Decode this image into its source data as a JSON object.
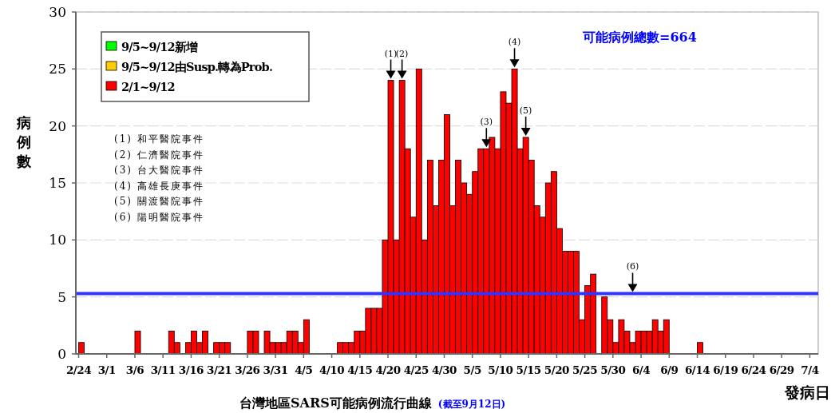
{
  "chart_data": {
    "type": "bar",
    "title": "台灣地區SARS可能病例流行曲線",
    "subtitle": "(截至9月12日)",
    "xlabel": "發病日",
    "ylabel": "病例數",
    "x": [
      "--02-24",
      "--03-06",
      "--03-12",
      "--03-13",
      "--03-15",
      "--03-16",
      "--03-17",
      "--03-18",
      "--03-20",
      "--03-21",
      "--03-22",
      "--03-26",
      "--03-27",
      "--03-29",
      "--03-30",
      "--03-31",
      "--04-01",
      "--04-02",
      "--04-03",
      "--04-04",
      "--04-05",
      "--04-11",
      "--04-12",
      "--04-13",
      "--04-14",
      "--04-15",
      "--04-16",
      "--04-17",
      "--04-18",
      "--04-19",
      "--04-20",
      "--04-21",
      "--04-22",
      "--04-23",
      "--04-24",
      "--04-25",
      "--04-26",
      "--04-27",
      "--04-28",
      "--04-29",
      "--04-30",
      "--05-01",
      "--05-02",
      "--05-03",
      "--05-04",
      "--05-05",
      "--05-06",
      "--05-07",
      "--05-08",
      "--05-09",
      "--05-10",
      "--05-11",
      "--05-12",
      "--05-13",
      "--05-14",
      "--05-15",
      "--05-16",
      "--05-17",
      "--05-18",
      "--05-19",
      "--05-20",
      "--05-21",
      "--05-22",
      "--05-23",
      "--05-24",
      "--05-25",
      "--05-26",
      "--05-28",
      "--05-29",
      "--05-30",
      "--05-31",
      "--06-01",
      "--06-02",
      "--06-03",
      "--06-04",
      "--06-05",
      "--06-06",
      "--06-07",
      "--06-08",
      "--06-14"
    ],
    "series": [
      {
        "name": "2/1~9/12",
        "color": "#ff0000",
        "values": [
          1,
          2,
          2,
          1,
          1,
          2,
          1,
          2,
          1,
          1,
          1,
          2,
          2,
          2,
          1,
          1,
          1,
          2,
          2,
          1,
          3,
          1,
          1,
          1,
          2,
          2,
          4,
          4,
          4,
          10,
          24,
          10,
          24,
          18,
          12,
          25,
          10,
          17,
          13,
          17,
          21,
          13,
          17,
          15,
          14,
          16,
          18,
          18,
          19,
          18,
          23,
          22,
          25,
          18,
          19,
          17,
          13,
          12,
          15,
          16,
          11,
          9,
          9,
          9,
          3,
          6,
          7,
          5,
          3,
          1,
          3,
          2,
          1,
          2,
          2,
          2,
          3,
          2,
          3,
          1
        ]
      },
      {
        "name": "9/5~9/12由Susp.轉為Prob.",
        "color": "#ffcc00",
        "values": [
          null,
          null,
          null,
          null,
          null,
          null,
          null,
          null,
          null,
          null,
          null,
          null,
          null,
          null,
          null,
          null,
          null,
          null,
          null,
          null,
          null,
          null,
          null,
          null,
          null,
          null,
          null,
          null,
          null,
          null,
          null,
          null,
          null,
          null,
          null,
          null,
          null,
          null,
          null,
          null,
          null,
          null,
          null,
          null,
          null,
          null,
          null,
          null,
          null,
          null,
          null,
          null,
          null,
          null,
          null,
          null,
          null,
          null,
          null,
          null,
          null,
          null,
          null,
          null,
          null,
          null,
          null,
          null,
          null,
          null,
          null,
          null,
          null,
          null,
          null,
          null,
          null,
          null,
          null,
          null
        ]
      },
      {
        "name": "9/5~9/12新增",
        "color": "#00ff00",
        "values": [
          null,
          null,
          null,
          null,
          null,
          null,
          null,
          null,
          null,
          null,
          null,
          null,
          null,
          null,
          null,
          null,
          null,
          null,
          null,
          null,
          null,
          null,
          null,
          null,
          null,
          null,
          null,
          null,
          null,
          null,
          null,
          null,
          null,
          null,
          null,
          null,
          null,
          null,
          null,
          null,
          null,
          null,
          null,
          null,
          null,
          null,
          null,
          null,
          null,
          null,
          null,
          null,
          null,
          null,
          null,
          null,
          null,
          null,
          null,
          null,
          null,
          null,
          null,
          null,
          null,
          null,
          null,
          null,
          null,
          null,
          null,
          null,
          null,
          null,
          null,
          null,
          null,
          null,
          null,
          null
        ]
      }
    ],
    "xlim": [
      "--02-23",
      "--07-05"
    ],
    "xticks": [
      {
        "value": "--02-24",
        "label": "2/24"
      },
      {
        "value": "--03-01",
        "label": "3/1"
      },
      {
        "value": "--03-06",
        "label": "3/6"
      },
      {
        "value": "--03-11",
        "label": "3/11"
      },
      {
        "value": "--03-16",
        "label": "3/16"
      },
      {
        "value": "--03-21",
        "label": "3/21"
      },
      {
        "value": "--03-26",
        "label": "3/26"
      },
      {
        "value": "--03-31",
        "label": "3/31"
      },
      {
        "value": "--04-05",
        "label": "4/5"
      },
      {
        "value": "--04-10",
        "label": "4/10"
      },
      {
        "value": "--04-15",
        "label": "4/15"
      },
      {
        "value": "--04-20",
        "label": "4/20"
      },
      {
        "value": "--04-25",
        "label": "4/25"
      },
      {
        "value": "--04-30",
        "label": "4/30"
      },
      {
        "value": "--05-05",
        "label": "5/5"
      },
      {
        "value": "--05-10",
        "label": "5/10"
      },
      {
        "value": "--05-15",
        "label": "5/15"
      },
      {
        "value": "--05-20",
        "label": "5/20"
      },
      {
        "value": "--05-25",
        "label": "5/25"
      },
      {
        "value": "--05-30",
        "label": "5/30"
      },
      {
        "value": "--06-04",
        "label": "6/4"
      },
      {
        "value": "--06-09",
        "label": "6/9"
      },
      {
        "value": "--06-14",
        "label": "6/14"
      },
      {
        "value": "--06-19",
        "label": "6/19"
      },
      {
        "value": "--06-24",
        "label": "6/24"
      },
      {
        "value": "--06-29",
        "label": "6/29"
      },
      {
        "value": "--07-04",
        "label": "7/4"
      }
    ],
    "ylim": [
      0,
      30
    ],
    "yticks": [
      0,
      5,
      10,
      15,
      20,
      25,
      30
    ],
    "grid": "y",
    "legend": "top left",
    "ref_lines": [
      {
        "axis": "y",
        "value": 5.3,
        "color": "#3333ff"
      }
    ],
    "annotations": [
      "可能病例總數=664",
      "(1) 和平醫院事件",
      "(2) 仁濟醫院事件",
      "(3) 台大醫院事件",
      "(4) 高雄長庚事件",
      "(5) 關渡醫院事件",
      "(6) 陽明醫院事件",
      {
        "text": "(1)",
        "x": "--04-20",
        "y": 24
      },
      {
        "text": "(2)",
        "x": "--04-22",
        "y": 24
      },
      {
        "text": "(3)",
        "x": "--05-07",
        "y": 18
      },
      {
        "text": "(4)",
        "x": "--05-12",
        "y": 25
      },
      {
        "text": "(5)",
        "x": "--05-14",
        "y": 19
      },
      {
        "text": "(6)",
        "x": "--06-02",
        "y": 5.3
      }
    ]
  }
}
